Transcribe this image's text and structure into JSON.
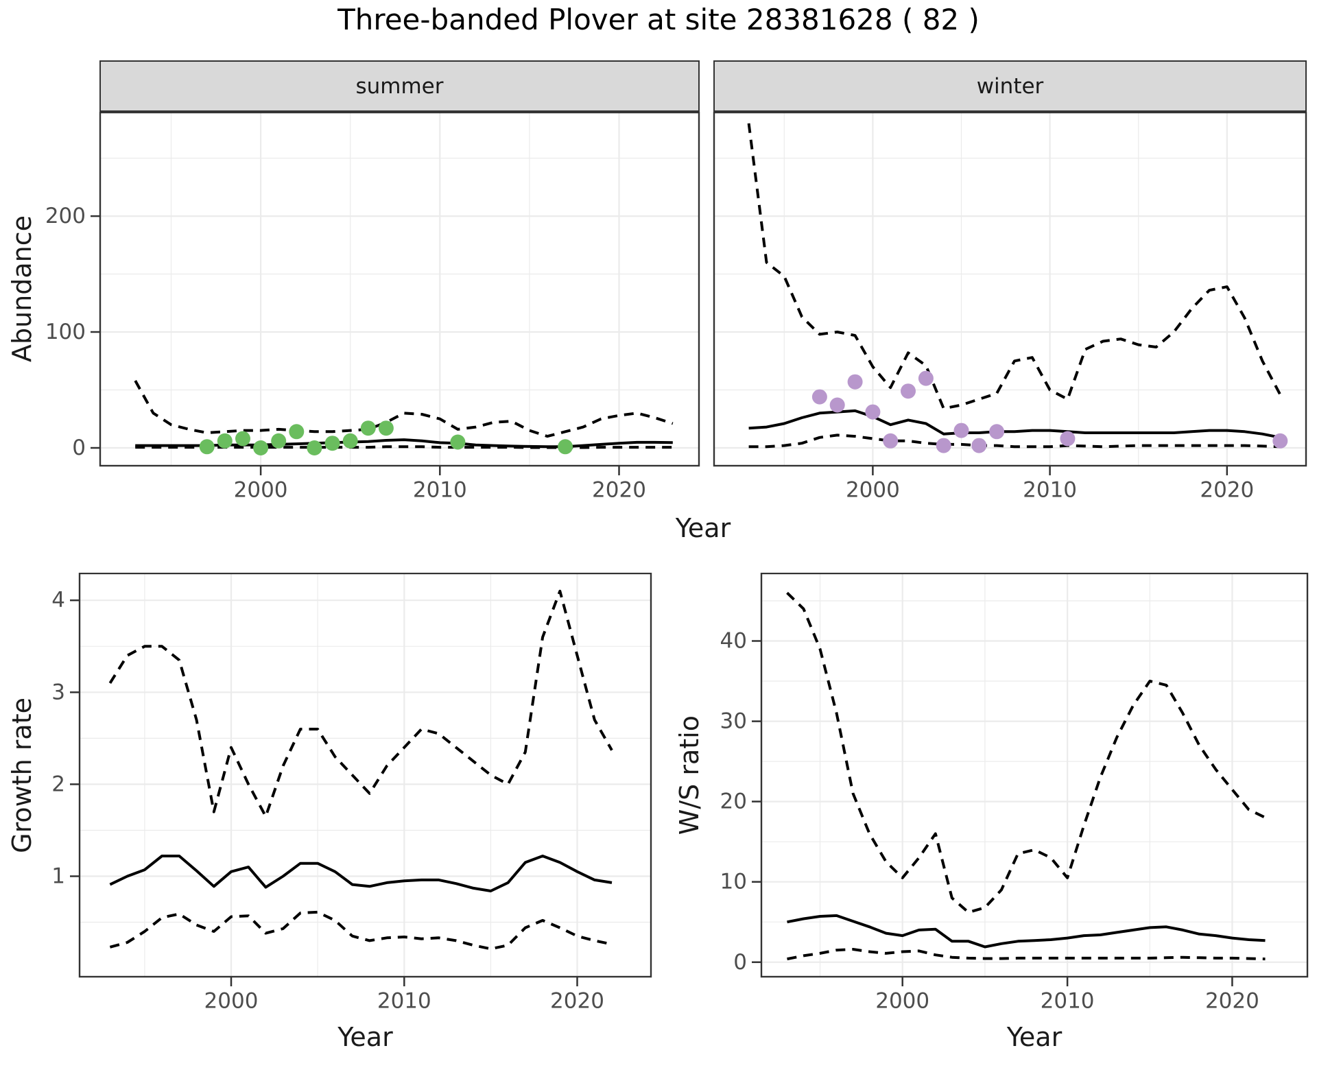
{
  "title": "Three-banded Plover at site 28381628 ( 82 )",
  "facets": [
    "summer",
    "winter"
  ],
  "axes": {
    "top_y": "Abundance",
    "top_x": "Year",
    "growth_y": "Growth rate",
    "growth_x": "Year",
    "ws_y": "W/S ratio",
    "ws_x": "Year"
  },
  "colors": {
    "summer_points": "#6abd5e",
    "winter_points": "#b897cc",
    "line": "#000000",
    "strip_bg": "#d9d9d9",
    "grid": "#ebebeb",
    "panel_border": "#333333",
    "tick_text": "#4d4d4d"
  },
  "chart_data": [
    {
      "id": "abundance_summer",
      "type": "line",
      "facet": "summer",
      "ylabel": "Abundance",
      "xlabel": "Year",
      "xlim": [
        1991,
        2024.5
      ],
      "ylim": [
        -16,
        290
      ],
      "xticks": [
        2000,
        2010,
        2020
      ],
      "xminor": [
        1995,
        2005,
        2015
      ],
      "yticks": [
        0,
        100,
        200
      ],
      "yminor": [
        50,
        150,
        250
      ],
      "years": [
        1993,
        1994,
        1995,
        1996,
        1997,
        1998,
        1999,
        2000,
        2001,
        2002,
        2003,
        2004,
        2005,
        2006,
        2007,
        2008,
        2009,
        2010,
        2011,
        2012,
        2013,
        2014,
        2015,
        2016,
        2017,
        2018,
        2019,
        2020,
        2021,
        2022,
        2023
      ],
      "median": [
        2,
        2,
        2,
        2,
        2,
        2.5,
        2.5,
        2.5,
        3,
        3.5,
        4,
        4.5,
        5,
        5.5,
        6.5,
        7,
        6,
        4.5,
        4,
        2.5,
        2,
        1.5,
        1.2,
        1,
        1,
        2,
        3,
        4,
        4.8,
        4.8,
        4.6
      ],
      "upper_ci": [
        58,
        30,
        20,
        16,
        13,
        14,
        15,
        15,
        16,
        15,
        14,
        14,
        15,
        16,
        22,
        30,
        29,
        25,
        16,
        18,
        22,
        23,
        15,
        10,
        14,
        18,
        25,
        28,
        30,
        26,
        21
      ],
      "lower_ci": [
        0.5,
        0.5,
        0.5,
        0.5,
        0.5,
        0.5,
        0.5,
        0.5,
        0.5,
        0.5,
        0.5,
        0.5,
        0.5,
        0.5,
        1,
        1,
        1,
        0.5,
        0.5,
        0.5,
        0.5,
        0.5,
        0.3,
        0.3,
        0.3,
        0.3,
        0.5,
        0.5,
        0.5,
        0.5,
        0.5
      ],
      "obs_years": [
        1997,
        1998,
        1999,
        2000,
        2001,
        2002,
        2003,
        2004,
        2005,
        2006,
        2007,
        2011,
        2017
      ],
      "obs_values": [
        1,
        6,
        8,
        0,
        6,
        14,
        0,
        4,
        6,
        17,
        17,
        5,
        1
      ],
      "point_color": "#6abd5e"
    },
    {
      "id": "abundance_winter",
      "type": "line",
      "facet": "winter",
      "ylabel": "Abundance",
      "xlabel": "Year",
      "xlim": [
        1991,
        2024.5
      ],
      "ylim": [
        -16,
        290
      ],
      "xticks": [
        2000,
        2010,
        2020
      ],
      "xminor": [
        1995,
        2005,
        2015
      ],
      "yticks": [
        0,
        100,
        200
      ],
      "yminor": [
        50,
        150,
        250
      ],
      "years": [
        1993,
        1994,
        1995,
        1996,
        1997,
        1998,
        1999,
        2000,
        2001,
        2002,
        2003,
        2004,
        2005,
        2006,
        2007,
        2008,
        2009,
        2010,
        2011,
        2012,
        2013,
        2014,
        2015,
        2016,
        2017,
        2018,
        2019,
        2020,
        2021,
        2022,
        2023
      ],
      "median": [
        17,
        18,
        21,
        26,
        30,
        31,
        32,
        27,
        20,
        24,
        21,
        12,
        13,
        13,
        14,
        14,
        15,
        15,
        14,
        13,
        13,
        13,
        13,
        13,
        13,
        14,
        15,
        15,
        14,
        12,
        9
      ],
      "upper_ci": [
        280,
        160,
        148,
        113,
        98,
        100,
        97,
        70,
        52,
        82,
        71,
        34,
        37,
        42,
        47,
        75,
        78,
        50,
        42,
        85,
        92,
        94,
        89,
        87,
        100,
        120,
        136,
        139,
        112,
        75,
        46
      ],
      "lower_ci": [
        1,
        1,
        2,
        4,
        9,
        11,
        10,
        8,
        6,
        6,
        4,
        3,
        3,
        2,
        2,
        1,
        1,
        1,
        2,
        1.5,
        1,
        1.5,
        2,
        2,
        2,
        2,
        2,
        2,
        2,
        1.5,
        1
      ],
      "obs_years": [
        1997,
        1998,
        1999,
        2000,
        2001,
        2002,
        2003,
        2004,
        2005,
        2006,
        2007,
        2011,
        2023
      ],
      "obs_values": [
        44,
        37,
        57,
        31,
        6,
        49,
        60,
        2,
        15,
        2,
        14,
        8,
        6
      ],
      "point_color": "#b897cc"
    },
    {
      "id": "growth_rate",
      "type": "line",
      "ylabel": "Growth rate",
      "xlabel": "Year",
      "xlim": [
        1991.2,
        2024.3
      ],
      "ylim": [
        -0.1,
        4.3
      ],
      "xticks": [
        2000,
        2010,
        2020
      ],
      "xminor": [
        1995,
        2005,
        2015
      ],
      "yticks": [
        1,
        2,
        3,
        4
      ],
      "yminor": [
        0.5,
        1.5,
        2.5,
        3.5
      ],
      "years": [
        1993,
        1994,
        1995,
        1996,
        1997,
        1998,
        1999,
        2000,
        2001,
        2002,
        2003,
        2004,
        2005,
        2006,
        2007,
        2008,
        2009,
        2010,
        2011,
        2012,
        2013,
        2014,
        2015,
        2016,
        2017,
        2018,
        2019,
        2020,
        2021,
        2022
      ],
      "median": [
        0.91,
        1.0,
        1.07,
        1.22,
        1.22,
        1.06,
        0.89,
        1.05,
        1.1,
        0.88,
        1.0,
        1.14,
        1.14,
        1.05,
        0.91,
        0.89,
        0.93,
        0.95,
        0.96,
        0.96,
        0.92,
        0.87,
        0.84,
        0.93,
        1.15,
        1.22,
        1.15,
        1.05,
        0.96,
        0.93
      ],
      "upper_ci": [
        3.1,
        3.4,
        3.5,
        3.5,
        3.35,
        2.7,
        1.7,
        2.4,
        2.0,
        1.65,
        2.2,
        2.6,
        2.6,
        2.3,
        2.1,
        1.9,
        2.2,
        2.4,
        2.6,
        2.55,
        2.4,
        2.25,
        2.1,
        2.0,
        2.35,
        3.6,
        4.1,
        3.4,
        2.7,
        2.37
      ],
      "lower_ci": [
        0.23,
        0.28,
        0.4,
        0.55,
        0.59,
        0.47,
        0.4,
        0.56,
        0.57,
        0.38,
        0.43,
        0.6,
        0.61,
        0.52,
        0.35,
        0.3,
        0.33,
        0.34,
        0.32,
        0.33,
        0.3,
        0.25,
        0.21,
        0.25,
        0.44,
        0.52,
        0.44,
        0.35,
        0.3,
        0.26
      ],
      "obs_years": [],
      "obs_values": [],
      "point_color": "#000000"
    },
    {
      "id": "ws_ratio",
      "type": "line",
      "ylabel": "W/S ratio",
      "xlabel": "Year",
      "xlim": [
        1991.4,
        2024.6
      ],
      "ylim": [
        -1.9,
        48.5
      ],
      "xticks": [
        2000,
        2010,
        2020
      ],
      "xminor": [
        1995,
        2005,
        2015
      ],
      "yticks": [
        0,
        10,
        20,
        30,
        40
      ],
      "yminor": [
        5,
        15,
        25,
        35,
        45
      ],
      "years": [
        1993,
        1994,
        1995,
        1996,
        1997,
        1998,
        1999,
        2000,
        2001,
        2002,
        2003,
        2004,
        2005,
        2006,
        2007,
        2008,
        2009,
        2010,
        2011,
        2012,
        2013,
        2014,
        2015,
        2016,
        2017,
        2018,
        2019,
        2020,
        2021,
        2022
      ],
      "median": [
        5.0,
        5.4,
        5.7,
        5.8,
        5.1,
        4.4,
        3.6,
        3.3,
        4.0,
        4.1,
        2.6,
        2.6,
        1.9,
        2.3,
        2.6,
        2.7,
        2.8,
        3.0,
        3.3,
        3.4,
        3.7,
        4.0,
        4.3,
        4.4,
        4.0,
        3.5,
        3.3,
        3.0,
        2.8,
        2.7
      ],
      "upper_ci": [
        46,
        44,
        39,
        31,
        21,
        16,
        12.5,
        10.5,
        13,
        16,
        8,
        6.2,
        6.8,
        9,
        13.5,
        14,
        13,
        10.5,
        17,
        23,
        28,
        32,
        35,
        34.5,
        31,
        27,
        24,
        21.5,
        19,
        18
      ],
      "lower_ci": [
        0.4,
        0.8,
        1.1,
        1.5,
        1.6,
        1.3,
        1.1,
        1.3,
        1.4,
        0.9,
        0.6,
        0.5,
        0.45,
        0.45,
        0.5,
        0.5,
        0.5,
        0.5,
        0.5,
        0.5,
        0.5,
        0.5,
        0.5,
        0.55,
        0.6,
        0.55,
        0.5,
        0.5,
        0.45,
        0.4
      ],
      "obs_years": [],
      "obs_values": [],
      "point_color": "#000000"
    }
  ]
}
